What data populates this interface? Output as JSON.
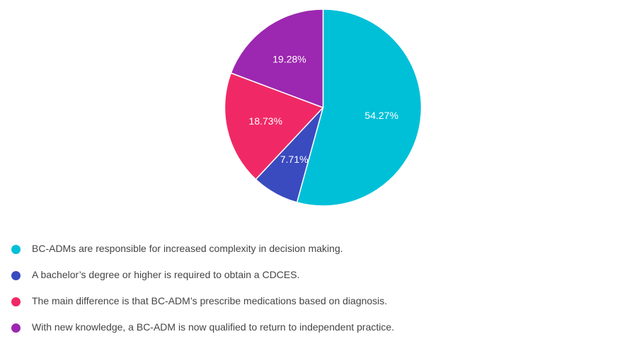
{
  "chart_data": {
    "type": "pie",
    "slices": [
      {
        "label": "BC-ADMs are responsible for increased complexity in decision making.",
        "value": 54.27,
        "display": "54.27%",
        "color": "#00c0d8"
      },
      {
        "label": "A bachelor’s degree or higher is required to obtain a CDCES.",
        "value": 7.71,
        "display": "7.71%",
        "color": "#3a4bbf"
      },
      {
        "label": "The main difference is that BC-ADM’s prescribe medications based on diagnosis.",
        "value": 18.73,
        "display": "18.73%",
        "color": "#f02966"
      },
      {
        "label": "With new knowledge, a BC-ADM is now qualified to return to independent practice.",
        "value": 19.28,
        "display": "19.28%",
        "color": "#9c27b0"
      }
    ],
    "start_angle": "12 o'clock",
    "direction": "clockwise",
    "legend_position": "bottom-left"
  }
}
